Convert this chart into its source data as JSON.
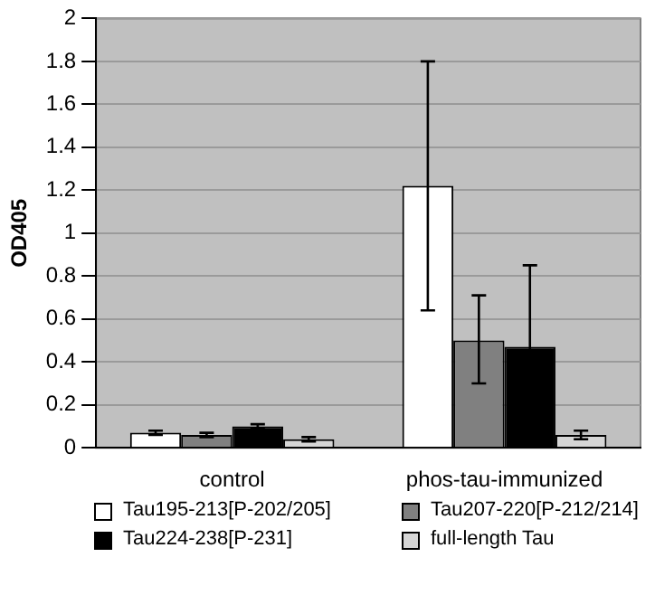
{
  "chart_data": {
    "type": "bar",
    "ylabel": "OD405",
    "categories": [
      "control",
      "phos-tau-immunized"
    ],
    "series": [
      {
        "name": "Tau195-213[P-202/205]",
        "color": "#ffffff",
        "values": [
          0.07,
          1.22
        ],
        "errors": [
          0.01,
          [
            0.64,
            1.8
          ]
        ]
      },
      {
        "name": "Tau207-220[P-212/214]",
        "color": "#808080",
        "values": [
          0.06,
          0.5
        ],
        "errors": [
          0.01,
          [
            0.3,
            0.71
          ]
        ]
      },
      {
        "name": "Tau224-238[P-231]",
        "color": "#000000",
        "values": [
          0.1,
          0.47
        ],
        "errors": [
          0.01,
          0.38
        ]
      },
      {
        "name": "full-length Tau",
        "color": "#d6d6d6",
        "values": [
          0.04,
          0.06
        ],
        "errors": [
          0.01,
          [
            0.04,
            0.08
          ]
        ]
      }
    ],
    "ylim": [
      0,
      2
    ],
    "yticks": [
      0,
      0.2,
      0.4,
      0.6,
      0.8,
      1,
      1.2,
      1.4,
      1.6,
      1.8,
      2
    ],
    "grid": "y",
    "legend": "bottom"
  }
}
